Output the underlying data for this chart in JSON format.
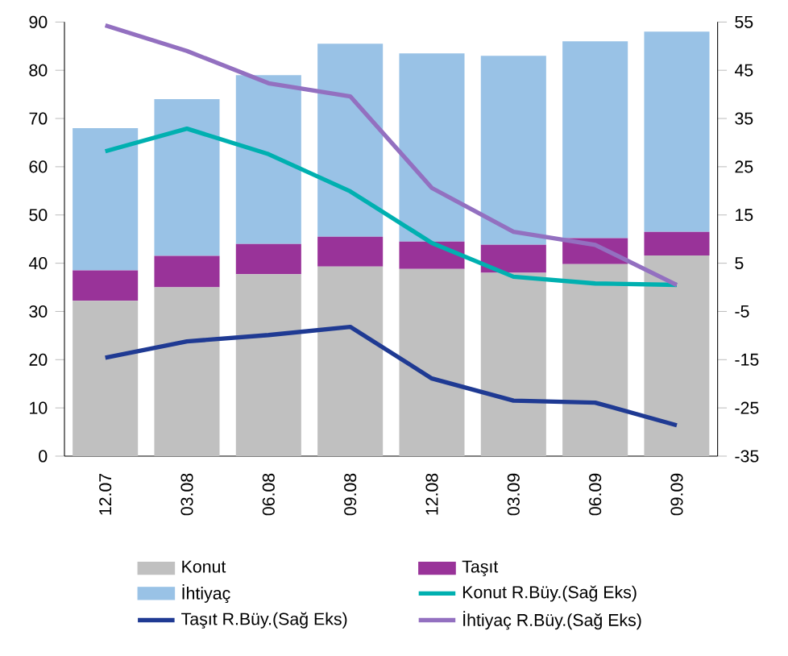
{
  "chart_data": {
    "type": "bar",
    "stacked": true,
    "categories": [
      "12.07",
      "03.08",
      "06.08",
      "09.08",
      "12.08",
      "03.09",
      "06.09",
      "09.09"
    ],
    "series": [
      {
        "name": "Konut",
        "color": "#c0c0c0",
        "values": [
          32.2,
          35,
          37.7,
          39.3,
          38.8,
          38,
          39.8,
          41.6
        ]
      },
      {
        "name": "Taşıt",
        "color": "#993399",
        "values": [
          6.3,
          6.5,
          6.3,
          6.2,
          5.7,
          5.8,
          5.4,
          4.9
        ]
      },
      {
        "name": "İhtiyaç",
        "color": "#99c2e6",
        "values": [
          29.5,
          32.5,
          35,
          40,
          39,
          39.2,
          40.8,
          41.5
        ]
      },
      {
        "name": "Konut R.Büy.(Sağ Eks)",
        "type": "line",
        "axis": "y2",
        "color": "#00b0b0",
        "values": [
          28.2,
          32.9,
          27.6,
          19.9,
          9.2,
          2.2,
          0.8,
          0.5
        ]
      },
      {
        "name": "Taşıt R.Büy.(Sağ Eks)",
        "type": "line",
        "axis": "y2",
        "color": "#1f3a93",
        "values": [
          -14.6,
          -11.2,
          -9.9,
          -8.2,
          -18.9,
          -23.5,
          -23.9,
          -28.6
        ]
      },
      {
        "name": "İhtiyaç R.Büy.(Sağ Eks)",
        "type": "line",
        "axis": "y2",
        "color": "#9370c0",
        "values": [
          54.3,
          49,
          42.3,
          39.6,
          20.6,
          11.5,
          8.8,
          0.5
        ]
      }
    ],
    "ylim": [
      0,
      90
    ],
    "yticks": [
      0,
      10,
      20,
      30,
      40,
      50,
      60,
      70,
      80,
      90
    ],
    "y2lim": [
      -35,
      55
    ],
    "y2ticks": [
      -35,
      -25,
      -15,
      -5,
      5,
      15,
      25,
      35,
      45,
      55
    ],
    "legend": "bottom"
  }
}
